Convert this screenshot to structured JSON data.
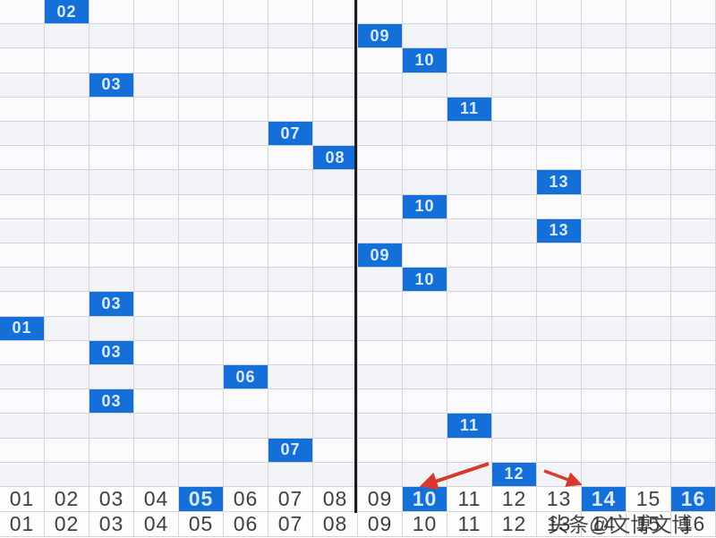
{
  "chart_data": {
    "type": "heatmap",
    "title": "",
    "xlabel": "",
    "ylabel": "",
    "columns": [
      "01",
      "02",
      "03",
      "04",
      "05",
      "06",
      "07",
      "08",
      "09",
      "10",
      "11",
      "12",
      "13",
      "14",
      "15",
      "16"
    ],
    "draw_rows": [
      "02",
      "09",
      "10",
      "03",
      "11",
      "07",
      "08",
      "13",
      "10",
      "13",
      "09",
      "10",
      "03",
      "01",
      "03",
      "06",
      "03",
      "11",
      "07",
      "12"
    ],
    "axis_rows": [
      {
        "labels": [
          "01",
          "02",
          "03",
          "04",
          "05",
          "06",
          "07",
          "08",
          "09",
          "10",
          "11",
          "12",
          "13",
          "14",
          "15",
          "16"
        ],
        "highlighted": [
          "05",
          "10",
          "14",
          "16"
        ]
      },
      {
        "labels": [
          "01",
          "02",
          "03",
          "04",
          "05",
          "06",
          "07",
          "08",
          "09",
          "10",
          "11",
          "12",
          "13",
          "14",
          "15",
          "16"
        ],
        "highlighted": []
      }
    ],
    "divider_between_columns": [
      "08",
      "09"
    ],
    "grid": "on",
    "legend_position": "none",
    "annotations": {
      "arrows": [
        {
          "from_value": "12",
          "to_label": "10"
        },
        {
          "from_value": "12",
          "to_label": "14"
        }
      ]
    }
  },
  "watermark": {
    "text": "头条@文博文博"
  },
  "colors": {
    "highlight_blue": "#1470d8",
    "highlight_text": "#dcebfc",
    "grid_line": "#d3d4d9",
    "row_stripe": "#f3f4f8",
    "divider_black": "#1d1d20",
    "arrow_red": "#d8392c",
    "axis_text": "#3e4044"
  }
}
